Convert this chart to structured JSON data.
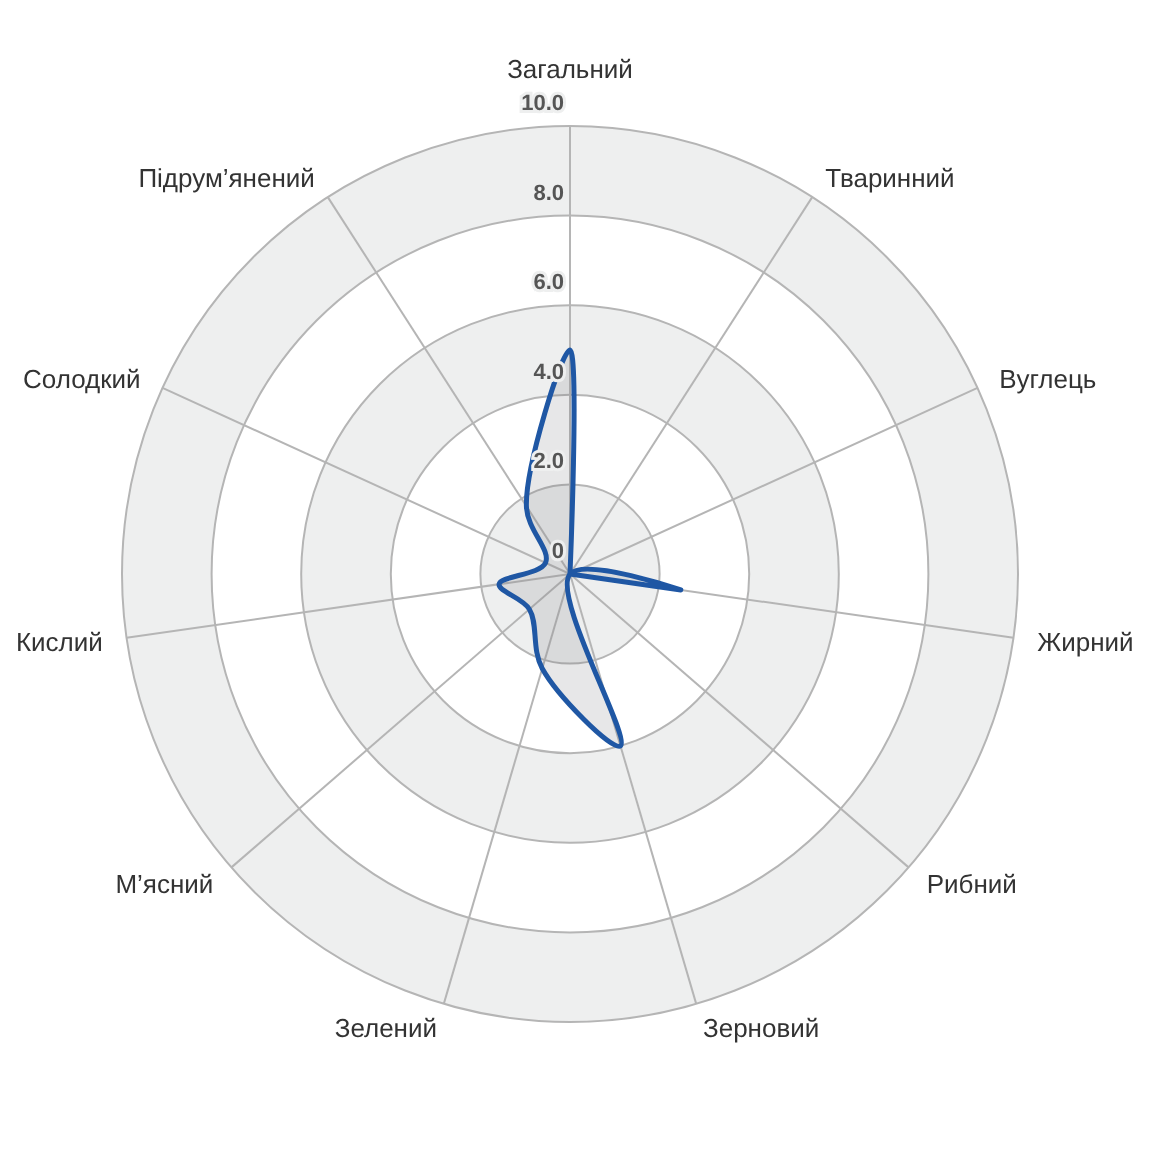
{
  "chart_data": {
    "type": "radar",
    "categories": [
      "Загальний",
      "Тваринний",
      "Вуглець",
      "Жирний",
      "Рибний",
      "Зерновий",
      "Зелений",
      "М’ясний",
      "Кислий",
      "Солодкий",
      "Підрум’янений"
    ],
    "series": [
      {
        "color": "#1f57a4",
        "values": [
          5.0,
          0,
          0,
          2.5,
          0,
          4.0,
          2.2,
          1.2,
          1.6,
          0.6,
          1.8
        ]
      }
    ],
    "ylim": [
      0,
      10
    ],
    "yticks": [
      0,
      {
        "value": 2,
        "label": "2.0"
      },
      {
        "value": 4,
        "label": "4.0"
      },
      {
        "value": 6,
        "label": "6.0"
      },
      {
        "value": 8,
        "label": "8.0"
      },
      {
        "value": 10,
        "label": "10.0"
      }
    ],
    "grid": true
  }
}
